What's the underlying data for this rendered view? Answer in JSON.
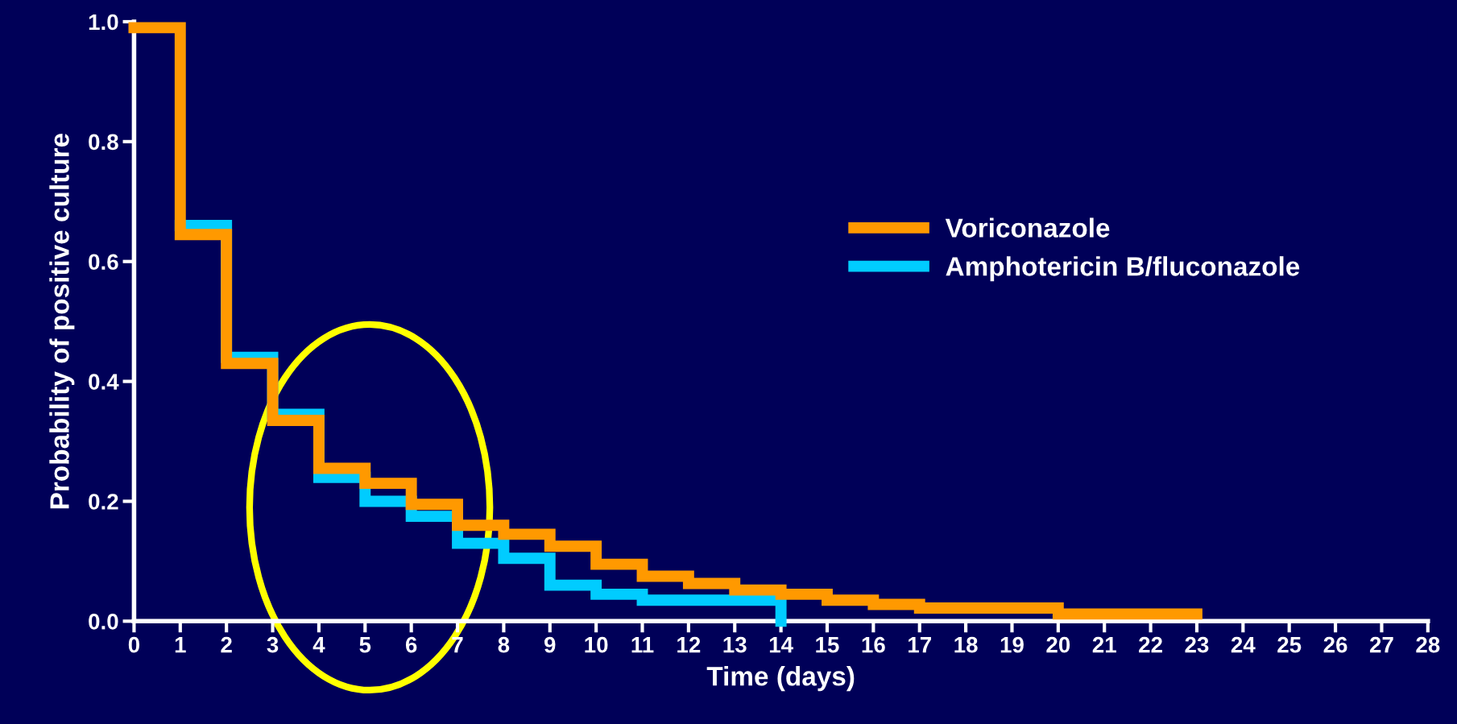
{
  "chart_data": {
    "type": "step",
    "xlabel": "Time (days)",
    "ylabel": "Probability of positive culture",
    "series": [
      {
        "name": "Voriconazole",
        "color": "#ff9900",
        "x": [
          0,
          1,
          2,
          3,
          4,
          5,
          6,
          7,
          8,
          9,
          10,
          11,
          12,
          13,
          14,
          15,
          16,
          17,
          20,
          23
        ],
        "values": [
          0.99,
          0.645,
          0.43,
          0.335,
          0.255,
          0.23,
          0.195,
          0.16,
          0.145,
          0.125,
          0.095,
          0.075,
          0.063,
          0.052,
          0.045,
          0.035,
          0.028,
          0.022,
          0.012,
          0.012
        ]
      },
      {
        "name": "Amphotericin B/fluconazole",
        "color": "#00ccff",
        "x": [
          1,
          2,
          3,
          4,
          5,
          6,
          7,
          8,
          9,
          10,
          11,
          14,
          14
        ],
        "values": [
          0.66,
          0.44,
          0.345,
          0.24,
          0.2,
          0.175,
          0.13,
          0.105,
          0.06,
          0.045,
          0.035,
          0.035,
          0
        ]
      }
    ],
    "xlim": [
      0,
      28
    ],
    "xticks": [
      0,
      1,
      2,
      3,
      4,
      5,
      6,
      7,
      8,
      9,
      10,
      11,
      12,
      13,
      14,
      15,
      16,
      17,
      18,
      19,
      20,
      21,
      22,
      23,
      24,
      25,
      26,
      27,
      28
    ],
    "ylim": [
      0,
      1.0
    ],
    "yticks": [
      {
        "value": 0,
        "label": "0.0"
      },
      {
        "value": 0.2,
        "label": "0.2"
      },
      {
        "value": 0.4,
        "label": "0.4"
      },
      {
        "value": 0.6,
        "label": "0.6"
      },
      {
        "value": 0.8,
        "label": "0.8"
      },
      {
        "value": 1.0,
        "label": "1.0"
      }
    ],
    "grid": false,
    "legend": "right",
    "line_style": "solid"
  }
}
